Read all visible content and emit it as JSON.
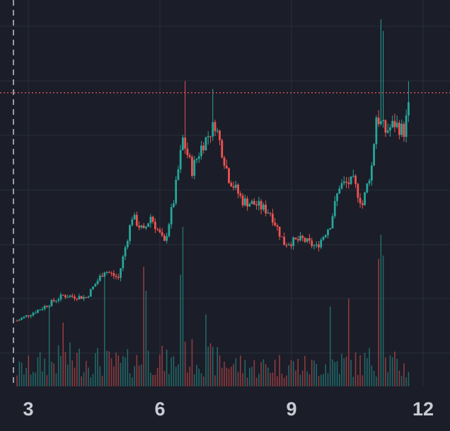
{
  "chart_data": {
    "type": "candlestick",
    "x_ticks": [
      "3",
      "6",
      "9",
      "12"
    ],
    "x_tick_values": [
      3,
      6,
      9,
      12
    ],
    "x_range": [
      2.63,
      12.4
    ],
    "price_range": [
      0.0,
      100.0
    ],
    "reference_line_price": 76.0,
    "volume_max": 100,
    "colors": {
      "background": "#1b1d28",
      "grid": "#2a2e3b",
      "up": "#26a69a",
      "down": "#ef5350",
      "reference_line": "#e05661",
      "cursor_line": "#b9bcc7",
      "tick_text": "#c9cbd4"
    },
    "price_path": [
      [
        3.0,
        17.0
      ],
      [
        3.5,
        20.0
      ],
      [
        4.0,
        23.5
      ],
      [
        4.5,
        23.0
      ],
      [
        4.9,
        30.0
      ],
      [
        5.2,
        28.0
      ],
      [
        5.5,
        44.0
      ],
      [
        5.75,
        40.0
      ],
      [
        5.9,
        44.0
      ],
      [
        6.2,
        37.0
      ],
      [
        6.4,
        48.0
      ],
      [
        6.6,
        64.0
      ],
      [
        6.8,
        56.0
      ],
      [
        7.0,
        62.0
      ],
      [
        7.3,
        68.0
      ],
      [
        7.6,
        54.0
      ],
      [
        7.9,
        48.0
      ],
      [
        8.2,
        47.0
      ],
      [
        8.5,
        45.0
      ],
      [
        8.8,
        37.0
      ],
      [
        9.2,
        38.0
      ],
      [
        9.5,
        36.0
      ],
      [
        9.8,
        42.0
      ],
      [
        10.0,
        52.0
      ],
      [
        10.3,
        53.0
      ],
      [
        10.5,
        47.0
      ],
      [
        10.7,
        57.0
      ],
      [
        10.8,
        70.0
      ],
      [
        11.0,
        66.0
      ],
      [
        11.2,
        68.0
      ],
      [
        11.4,
        66.0
      ],
      [
        11.5,
        72.0
      ]
    ],
    "price_wicks": [
      [
        10.9,
        95.0
      ],
      [
        10.95,
        92.0
      ],
      [
        6.65,
        79.0
      ],
      [
        7.25,
        77.0
      ],
      [
        11.5,
        79.0
      ]
    ],
    "volume_path": [
      [
        3.0,
        12
      ],
      [
        3.7,
        18
      ],
      [
        4.2,
        20
      ],
      [
        4.8,
        18
      ],
      [
        5.2,
        16
      ],
      [
        5.7,
        18
      ],
      [
        6.0,
        22
      ],
      [
        6.3,
        16
      ],
      [
        6.7,
        22
      ],
      [
        7.1,
        20
      ],
      [
        7.7,
        16
      ],
      [
        8.2,
        14
      ],
      [
        8.8,
        16
      ],
      [
        9.4,
        14
      ],
      [
        9.9,
        18
      ],
      [
        10.4,
        16
      ],
      [
        10.8,
        20
      ],
      [
        11.2,
        16
      ],
      [
        11.5,
        12
      ]
    ],
    "volume_spikes": [
      [
        6.6,
        100
      ],
      [
        6.55,
        70
      ],
      [
        5.75,
        75
      ],
      [
        5.8,
        60
      ],
      [
        4.9,
        70
      ],
      [
        10.9,
        95
      ],
      [
        10.85,
        80
      ],
      [
        10.95,
        82
      ],
      [
        6.6,
        55
      ],
      [
        9.8,
        50
      ],
      [
        3.7,
        50
      ],
      [
        4.0,
        40
      ],
      [
        7.1,
        45
      ],
      [
        10.2,
        55
      ]
    ]
  }
}
